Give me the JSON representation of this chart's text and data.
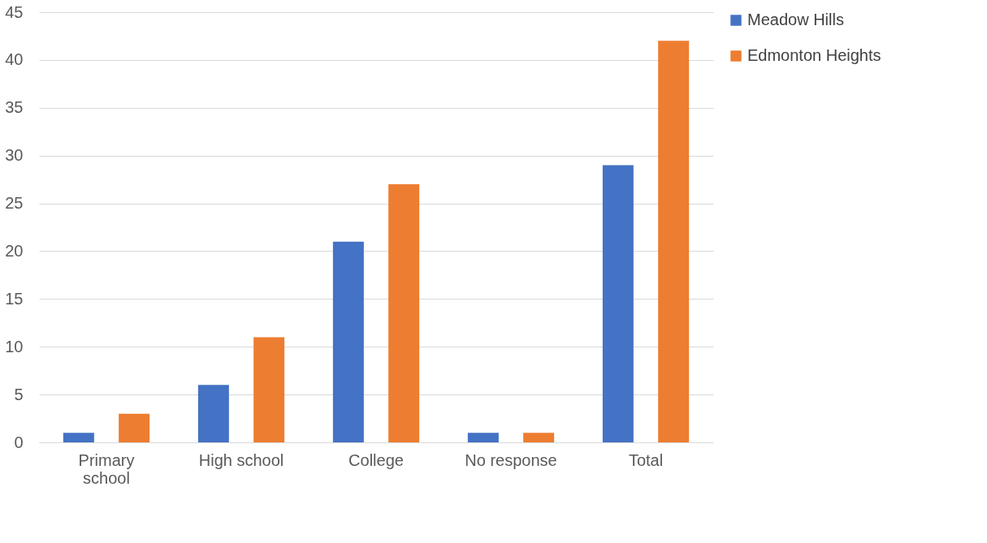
{
  "chart_data": {
    "type": "bar",
    "categories": [
      "Primary school",
      "High school",
      "College",
      "No response",
      "Total"
    ],
    "series": [
      {
        "name": "Meadow Hills",
        "color": "#4472c4",
        "values": [
          1,
          6,
          21,
          1,
          29
        ]
      },
      {
        "name": "Edmonton Heights",
        "color": "#ed7d31",
        "values": [
          3,
          11,
          27,
          1,
          42
        ]
      }
    ],
    "ylim": [
      0,
      45
    ],
    "yticks": [
      0,
      5,
      10,
      15,
      20,
      25,
      30,
      35,
      40,
      45
    ],
    "grid": "y",
    "legend": "right"
  }
}
